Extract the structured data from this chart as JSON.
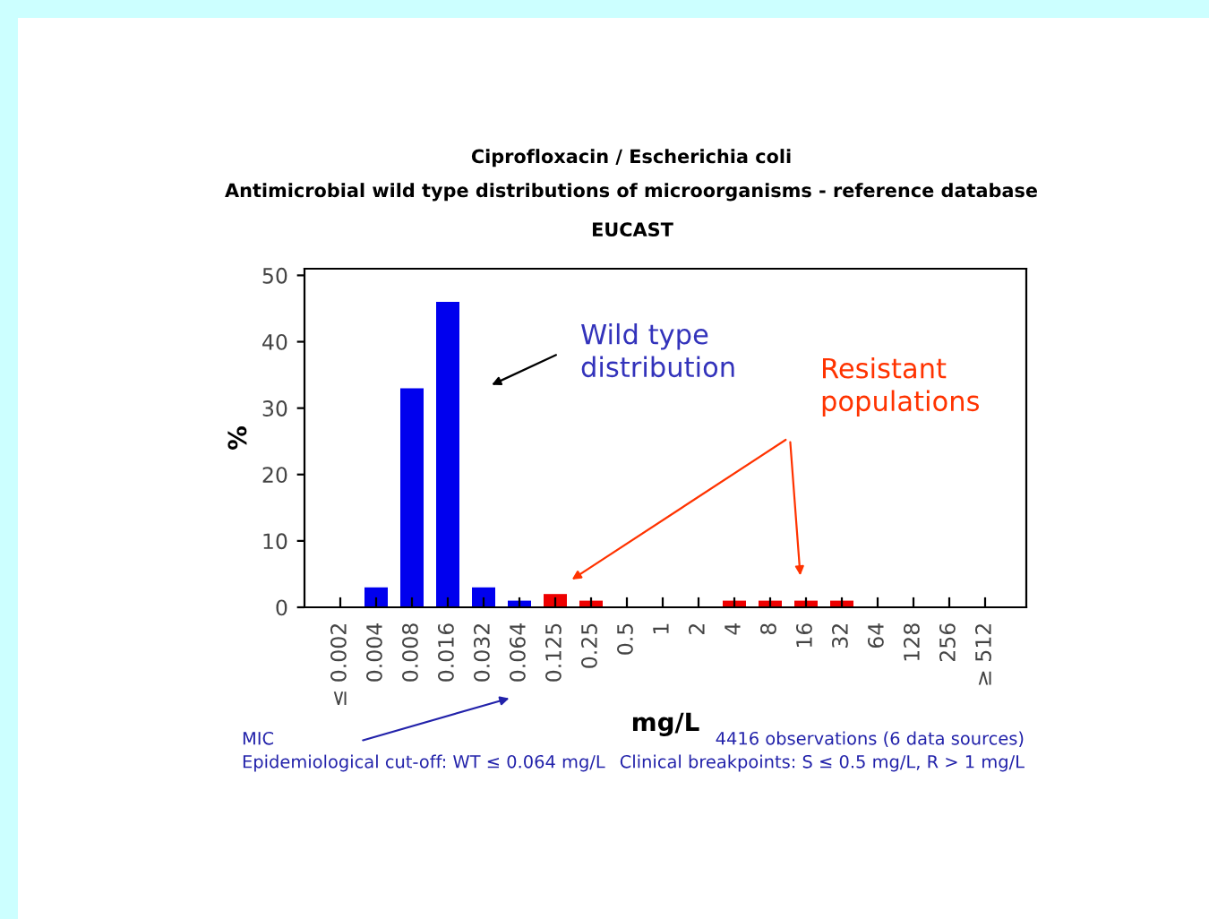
{
  "chart_data": {
    "type": "bar",
    "title": "Ciprofloxacin / Escherichia coli",
    "subtitle": "Antimicrobial wild type distributions of microorganisms - reference database",
    "categories": [
      "≤ 0.002",
      "0.004",
      "0.008",
      "0.016",
      "0.032",
      "0.064",
      "0.125",
      "0.25",
      "0.5",
      "1",
      "2",
      "4",
      "8",
      "16",
      "32",
      "64",
      "128",
      "256",
      "≥ 512"
    ],
    "values": [
      0,
      3,
      33,
      46,
      3,
      1,
      2,
      1,
      0,
      0,
      0,
      1,
      1,
      1,
      1,
      0,
      0,
      0,
      0
    ],
    "colors": [
      "#0000ee",
      "#0000ee",
      "#0000ee",
      "#0000ee",
      "#0000ee",
      "#0000ee",
      "#ee0000",
      "#ee0000",
      "#ee0000",
      "#ee0000",
      "#ee0000",
      "#ee0000",
      "#ee0000",
      "#ee0000",
      "#ee0000",
      "#ee0000",
      "#ee0000",
      "#ee0000",
      "#ee0000"
    ],
    "xlabel": "mg/L",
    "ylabel": "%",
    "ylim": [
      0,
      51
    ],
    "yticks": [
      0,
      10,
      20,
      30,
      40,
      50
    ],
    "grid": false,
    "legend": false,
    "annotations": [
      "EUCAST",
      "Wild type distribution",
      "Resistant populations",
      "MIC",
      "Epidemiological cut-off: WT ≤ 0.064 mg/L",
      "4416 observations (6 data sources)",
      "Clinical breakpoints: S ≤ 0.5 mg/L, R > 1 mg/L"
    ]
  }
}
